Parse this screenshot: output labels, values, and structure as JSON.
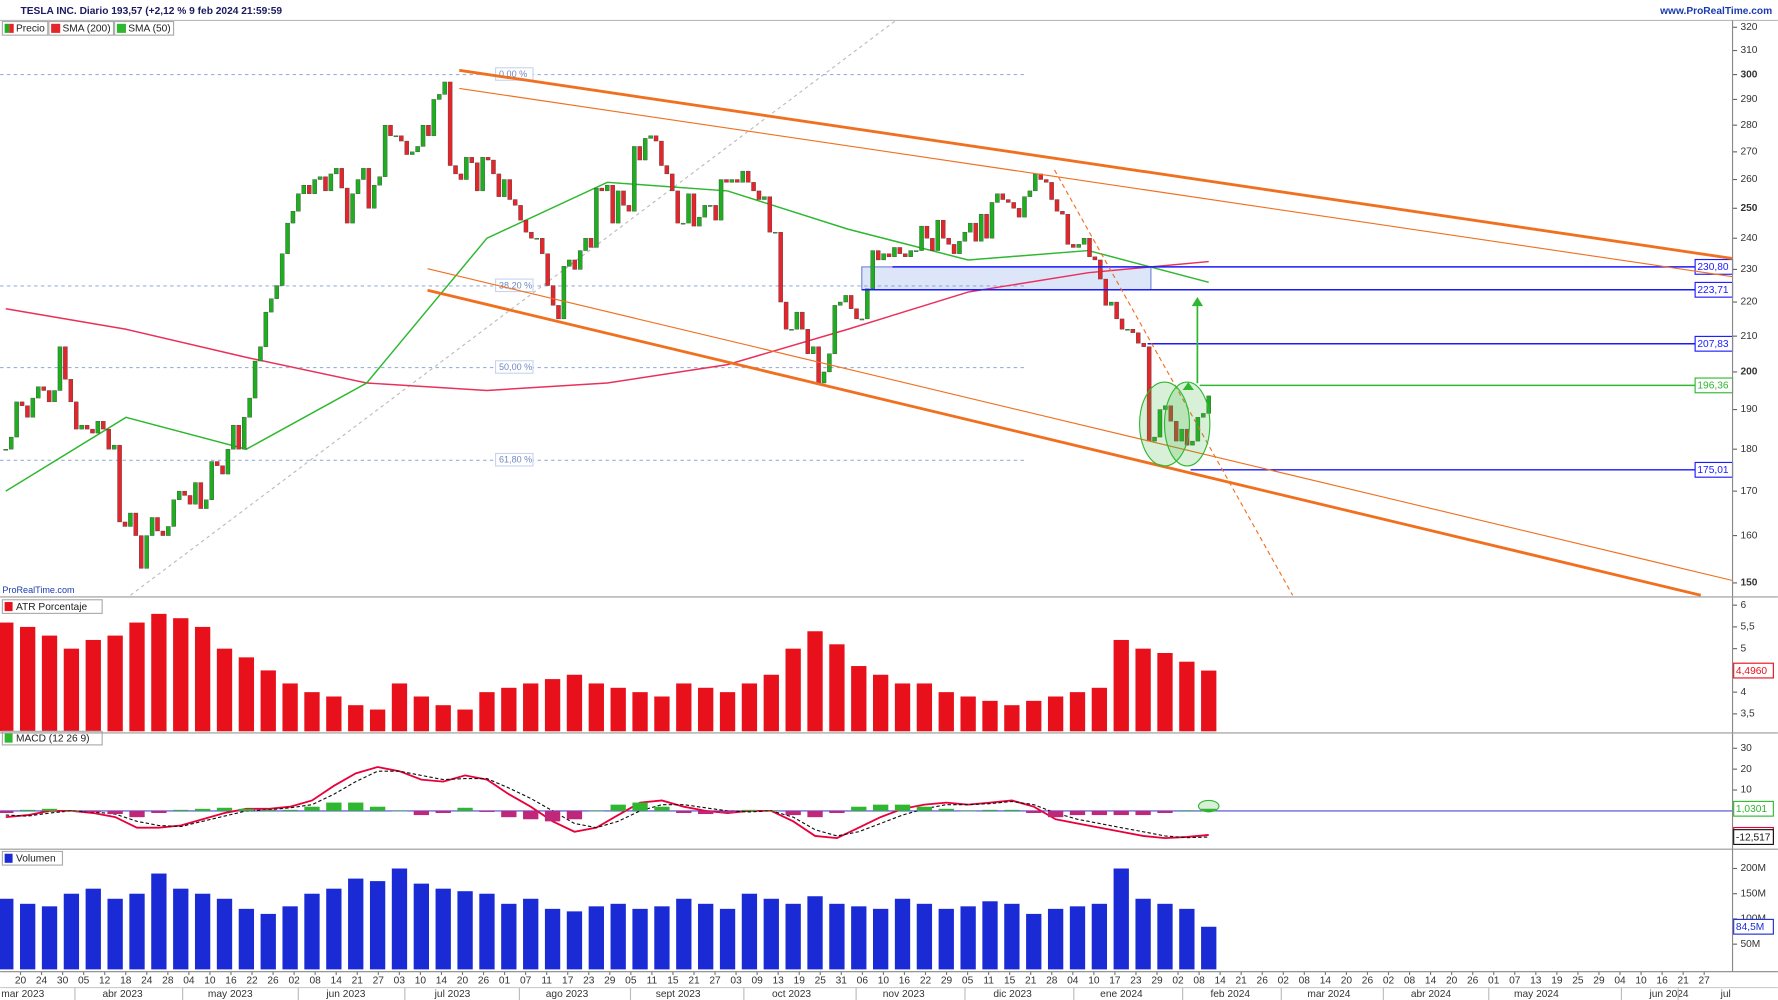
{
  "header": {
    "title": "TESLA INC. Diario 193,57 (+2,12 % 9 feb 2024 21:59:59",
    "site": "www.ProRealTime.com",
    "watermark": "ProRealTime.com"
  },
  "x_axis": {
    "days": [
      "20",
      "24",
      "30",
      "05",
      "12",
      "18",
      "24",
      "28",
      "04",
      "10",
      "16",
      "22",
      "26",
      "02",
      "08",
      "14",
      "21",
      "27",
      "03",
      "10",
      "14",
      "20",
      "26",
      "01",
      "07",
      "11",
      "17",
      "23",
      "29",
      "05",
      "11",
      "15",
      "21",
      "27",
      "03",
      "09",
      "13",
      "19",
      "25",
      "31",
      "06",
      "10",
      "16",
      "22",
      "29",
      "05",
      "11",
      "15",
      "21",
      "28",
      "04",
      "10",
      "17",
      "23",
      "29",
      "02",
      "08",
      "14",
      "21",
      "26",
      "02",
      "08",
      "14",
      "20",
      "26",
      "02",
      "08",
      "14",
      "20",
      "26",
      "01",
      "07",
      "13",
      "19",
      "25",
      "29",
      "04",
      "10",
      "16",
      "21",
      "27"
    ],
    "months": [
      "mar 2023",
      "abr 2023",
      "may 2023",
      "jun 2023",
      "jul 2023",
      "ago 2023",
      "sept 2023",
      "oct 2023",
      "nov 2023",
      "dic 2023",
      "ene 2024",
      "feb 2024",
      "mar 2024",
      "abr 2024",
      "may 2024",
      "jun 2024",
      "jul"
    ]
  },
  "chart_data": [
    {
      "type": "candlestick",
      "log_scale": true,
      "up_color": "#1fae1f",
      "down_color": "#e3262b",
      "series": [
        {
          "name": "Precio",
          "values": [
            180,
            183,
            192,
            191,
            188,
            193,
            196,
            195,
            192,
            195,
            207,
            198,
            192,
            185,
            186,
            185,
            184,
            187,
            185,
            180,
            181,
            163,
            162,
            165,
            160,
            153,
            160,
            164,
            161,
            160,
            162,
            168,
            170,
            169,
            167,
            172,
            166,
            168,
            177,
            176,
            174,
            180,
            186,
            180,
            188,
            193,
            203,
            207,
            217,
            221,
            225,
            235,
            245,
            249,
            255,
            258,
            255,
            260,
            261,
            256,
            262,
            264,
            257,
            245,
            255,
            260,
            264,
            250,
            258,
            261,
            280,
            276,
            276,
            274,
            269,
            270,
            272,
            280,
            276,
            290,
            292,
            297,
            265,
            262,
            260,
            268,
            266,
            256,
            268,
            267,
            262,
            254,
            260,
            253,
            251,
            246,
            242,
            240,
            240,
            235,
            225,
            219,
            215,
            231,
            233,
            230,
            236,
            240,
            237,
            257,
            256,
            258,
            245,
            256,
            251,
            249,
            272,
            267,
            275,
            276,
            274,
            265,
            262,
            256,
            245,
            245,
            255,
            244,
            247,
            251,
            251,
            246,
            260,
            259,
            260,
            259,
            263,
            259,
            256,
            253,
            254,
            242,
            242,
            220,
            212,
            212,
            217,
            212,
            205,
            207,
            197,
            200,
            205,
            219,
            220,
            222,
            218,
            215,
            215,
            224,
            236,
            233,
            235,
            234,
            237,
            235,
            234,
            236,
            236,
            244,
            240,
            236,
            246,
            240,
            238,
            235,
            239,
            242,
            245,
            239,
            248,
            240,
            252,
            255,
            253,
            252,
            250,
            247,
            254,
            256,
            262,
            260,
            259,
            253,
            249,
            248,
            238,
            237,
            238,
            240,
            234,
            233,
            227,
            219,
            220,
            215,
            212,
            212,
            211,
            208,
            207,
            182,
            183,
            190,
            191,
            187,
            182,
            185,
            181,
            182,
            188,
            189,
            193.57
          ]
        },
        {
          "name": "SMA (200)",
          "color": "#e8305a",
          "values": [
            218,
            212,
            204,
            197,
            195,
            197,
            202,
            212,
            223,
            229,
            232.5
          ]
        },
        {
          "name": "SMA (50)",
          "color": "#2fb82f",
          "values": [
            170,
            188,
            180,
            197,
            240,
            259,
            256,
            243,
            233,
            236,
            226
          ]
        }
      ],
      "ylim": [
        147.5,
        323
      ],
      "yticks": [
        150,
        160,
        170,
        180,
        190,
        200,
        210,
        220,
        230,
        240,
        250,
        260,
        270,
        280,
        290,
        300,
        310,
        320
      ],
      "fib": [
        {
          "value": 300,
          "label": "0,00 %"
        },
        {
          "value": 224.9,
          "label": "38,20 %"
        },
        {
          "value": 201.2,
          "label": "50,00 %"
        },
        {
          "value": 177.3,
          "label": "61,80 %"
        }
      ],
      "levels": [
        {
          "value": 230.8,
          "label": "230,80",
          "color": "#1a1aff"
        },
        {
          "value": 223.71,
          "label": "223,71",
          "color": "#1a1aff"
        },
        {
          "value": 207.83,
          "label": "207,83",
          "color": "#1a1aff"
        },
        {
          "value": 196.36,
          "label": "196,36",
          "color": "#2fb82f"
        },
        {
          "value": 175.01,
          "label": "175,01",
          "color": "#1a1aff"
        }
      ]
    },
    {
      "type": "bar",
      "title": "ATR Porcentaje",
      "color": "#e8101a",
      "values": [
        5.6,
        5.5,
        5.3,
        5.0,
        5.2,
        5.3,
        5.6,
        5.8,
        5.7,
        5.5,
        5.0,
        4.8,
        4.5,
        4.2,
        4.0,
        3.9,
        3.7,
        3.6,
        4.2,
        3.9,
        3.7,
        3.6,
        4.0,
        4.1,
        4.2,
        4.3,
        4.4,
        4.2,
        4.1,
        4.0,
        3.9,
        4.2,
        4.1,
        4.0,
        4.2,
        4.4,
        5.0,
        5.4,
        5.1,
        4.6,
        4.4,
        4.2,
        4.2,
        4.0,
        3.9,
        3.8,
        3.7,
        3.8,
        3.9,
        4.0,
        4.1,
        5.2,
        5.0,
        4.9,
        4.7,
        4.496
      ],
      "last_value_label": "4,4960",
      "ylim": [
        3.1,
        6.15
      ],
      "yticks": [
        {
          "value": 3.5,
          "label": "3,5"
        },
        4,
        {
          "value": 4.5,
          "label": "4,5"
        },
        5,
        {
          "value": 5.5,
          "label": "5,5"
        },
        6
      ]
    },
    {
      "type": "line",
      "title": "MACD (12 26 9)",
      "series": [
        {
          "color": "#e8003a",
          "values": [
            -3,
            -2,
            0,
            0,
            -1,
            -3,
            -8,
            -8,
            -7,
            -4,
            -1,
            1,
            1,
            2,
            5,
            12,
            18,
            21,
            19,
            15,
            14,
            17,
            15,
            8,
            2,
            -5,
            -10,
            -8,
            -2,
            4,
            5,
            2,
            0,
            -1,
            0,
            0,
            -5,
            -12,
            -13,
            -8,
            -3,
            1,
            3,
            4,
            3,
            4,
            5,
            2,
            -4,
            -6,
            -8,
            -10,
            -12,
            -13,
            -12.5,
            -11.487
          ],
          "last_value_label": "-11,487"
        },
        {
          "color": "#111111",
          "dashed": true,
          "values": [
            -2,
            -2.5,
            -1,
            0,
            -0.5,
            -1.5,
            -5,
            -7,
            -7.5,
            -5,
            -2.5,
            0,
            0.5,
            1.5,
            3,
            8,
            14,
            19,
            19,
            17,
            15,
            15.5,
            15.5,
            11,
            6,
            0,
            -6,
            -8,
            -5,
            0,
            3,
            3,
            1.5,
            0,
            -0.5,
            0,
            -3,
            -9,
            -12,
            -10,
            -6,
            -2,
            1,
            3,
            3,
            3.5,
            4.5,
            3,
            -1,
            -4,
            -6,
            -8,
            -10,
            -12,
            -12.8,
            -12.517
          ],
          "last_value_label": "-12,517"
        },
        {
          "type": "bar",
          "color": "#2fb82f",
          "down_color": "#c0267a",
          "values": [
            -1,
            0.5,
            1,
            0,
            -0.5,
            -1.5,
            -3,
            -1,
            0.5,
            1,
            1.5,
            1,
            0.5,
            0.5,
            2,
            4,
            4,
            2,
            0,
            -2,
            -1,
            1.5,
            -0.5,
            -3,
            -4,
            -5,
            -4,
            0,
            3,
            4,
            2,
            -1,
            -1.5,
            -1,
            0.5,
            0,
            -2,
            -3,
            -1,
            2,
            3,
            3,
            2,
            1,
            0,
            0.5,
            0.5,
            -1,
            -3,
            -2,
            -2,
            -2,
            -2,
            -1,
            0.3,
            1.0301
          ],
          "last_value_label": "1,0301"
        }
      ],
      "ylim": [
        -17.8,
        36.5
      ],
      "yticks": [
        10,
        20,
        30
      ]
    },
    {
      "type": "bar",
      "title": "Volumen",
      "color": "#1a2bd6",
      "values": [
        140,
        130,
        125,
        150,
        160,
        140,
        150,
        190,
        160,
        150,
        140,
        120,
        110,
        125,
        150,
        160,
        180,
        175,
        200,
        170,
        160,
        155,
        150,
        130,
        140,
        120,
        115,
        125,
        130,
        120,
        125,
        140,
        130,
        120,
        150,
        140,
        130,
        145,
        130,
        125,
        120,
        140,
        130,
        120,
        125,
        135,
        130,
        110,
        120,
        125,
        130,
        200,
        140,
        130,
        120,
        84.5
      ],
      "last_value_label": "84,5M",
      "ylim": [
        -4.5,
        236
      ],
      "yticks": [
        {
          "value": 50,
          "label": "50M"
        },
        {
          "value": 100,
          "label": "100M"
        },
        {
          "value": 150,
          "label": "150M"
        },
        {
          "value": 200,
          "label": "200M"
        }
      ]
    }
  ]
}
